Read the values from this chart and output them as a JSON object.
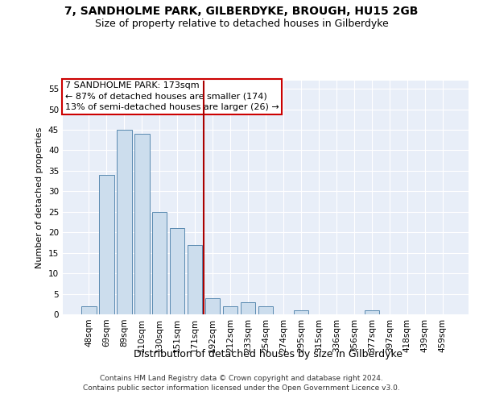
{
  "title1": "7, SANDHOLME PARK, GILBERDYKE, BROUGH, HU15 2GB",
  "title2": "Size of property relative to detached houses in Gilberdyke",
  "xlabel": "Distribution of detached houses by size in Gilberdyke",
  "ylabel": "Number of detached properties",
  "categories": [
    "48sqm",
    "69sqm",
    "89sqm",
    "110sqm",
    "130sqm",
    "151sqm",
    "171sqm",
    "192sqm",
    "212sqm",
    "233sqm",
    "254sqm",
    "274sqm",
    "295sqm",
    "315sqm",
    "336sqm",
    "356sqm",
    "377sqm",
    "397sqm",
    "418sqm",
    "439sqm",
    "459sqm"
  ],
  "values": [
    2,
    34,
    45,
    44,
    25,
    21,
    17,
    4,
    2,
    3,
    2,
    0,
    1,
    0,
    0,
    0,
    1,
    0,
    0,
    0,
    0
  ],
  "bar_color": "#ccdded",
  "bar_edge_color": "#5a8ab0",
  "red_line_index": 6.5,
  "ylim": [
    0,
    57
  ],
  "yticks": [
    0,
    5,
    10,
    15,
    20,
    25,
    30,
    35,
    40,
    45,
    50,
    55
  ],
  "annotation_title": "7 SANDHOLME PARK: 173sqm",
  "annotation_line1": "← 87% of detached houses are smaller (174)",
  "annotation_line2": "13% of semi-detached houses are larger (26) →",
  "footer1": "Contains HM Land Registry data © Crown copyright and database right 2024.",
  "footer2": "Contains public sector information licensed under the Open Government Licence v3.0.",
  "bg_color": "#e8eef8",
  "title_fontsize": 10,
  "subtitle_fontsize": 9,
  "ylabel_fontsize": 8,
  "xlabel_fontsize": 9,
  "tick_fontsize": 7.5,
  "annotation_fontsize": 8,
  "footer_fontsize": 6.5
}
